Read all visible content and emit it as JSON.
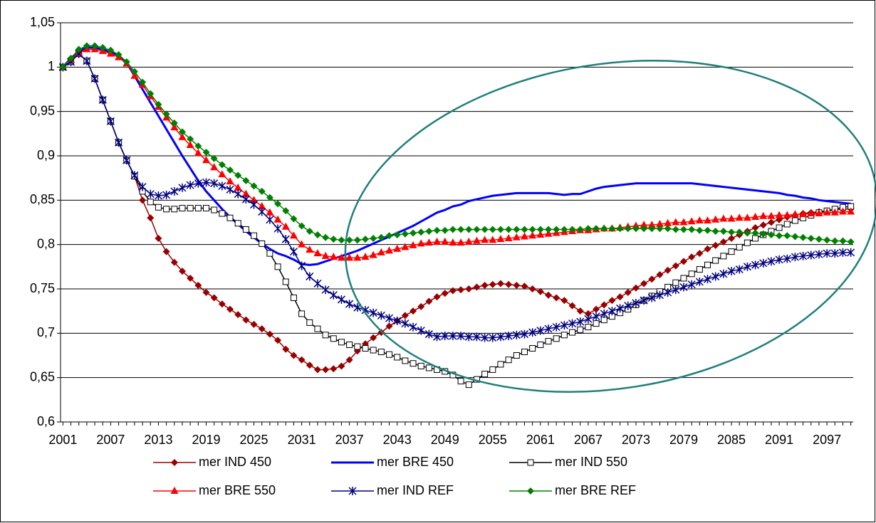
{
  "chart_data": {
    "type": "line",
    "x": [
      2001,
      2002,
      2003,
      2004,
      2005,
      2006,
      2007,
      2008,
      2009,
      2010,
      2011,
      2012,
      2013,
      2014,
      2015,
      2016,
      2017,
      2018,
      2019,
      2020,
      2021,
      2022,
      2023,
      2024,
      2025,
      2026,
      2027,
      2028,
      2029,
      2030,
      2031,
      2032,
      2033,
      2034,
      2035,
      2036,
      2037,
      2038,
      2039,
      2040,
      2041,
      2042,
      2043,
      2044,
      2045,
      2046,
      2047,
      2048,
      2049,
      2050,
      2051,
      2052,
      2053,
      2054,
      2055,
      2056,
      2057,
      2058,
      2059,
      2060,
      2061,
      2062,
      2063,
      2064,
      2065,
      2066,
      2067,
      2068,
      2069,
      2070,
      2071,
      2072,
      2073,
      2074,
      2075,
      2076,
      2077,
      2078,
      2079,
      2080,
      2081,
      2082,
      2083,
      2084,
      2085,
      2086,
      2087,
      2088,
      2089,
      2090,
      2091,
      2092,
      2093,
      2094,
      2095,
      2096,
      2097,
      2098,
      2099,
      2100
    ],
    "xlim": [
      2000.7,
      2100.3
    ],
    "xticks": [
      2001,
      2007,
      2013,
      2019,
      2025,
      2031,
      2037,
      2043,
      2049,
      2055,
      2061,
      2067,
      2073,
      2079,
      2085,
      2091,
      2097
    ],
    "ylim": [
      0.6,
      1.05
    ],
    "yticks": [
      {
        "value": 0.6,
        "label": "0,6"
      },
      {
        "value": 0.65,
        "label": "0,65"
      },
      {
        "value": 0.7,
        "label": "0,7"
      },
      {
        "value": 0.75,
        "label": "0,75"
      },
      {
        "value": 0.8,
        "label": "0,8"
      },
      {
        "value": 0.85,
        "label": "0,85"
      },
      {
        "value": 0.9,
        "label": "0,9"
      },
      {
        "value": 0.95,
        "label": "0,95"
      },
      1,
      {
        "value": 1.05,
        "label": "1,05"
      }
    ],
    "grid": true,
    "legend": "bottom",
    "series": [
      {
        "name": "mer IND 450",
        "color": "#990000",
        "marker": "diamond",
        "values": [
          1.0,
          1.006,
          1.015,
          1.007,
          0.987,
          0.963,
          0.939,
          0.915,
          0.895,
          0.877,
          0.85,
          0.83,
          0.807,
          0.792,
          0.78,
          0.77,
          0.762,
          0.754,
          0.746,
          0.74,
          0.733,
          0.727,
          0.721,
          0.715,
          0.71,
          0.705,
          0.699,
          0.692,
          0.682,
          0.675,
          0.67,
          0.664,
          0.659,
          0.659,
          0.66,
          0.663,
          0.67,
          0.68,
          0.688,
          0.695,
          0.701,
          0.708,
          0.714,
          0.72,
          0.725,
          0.73,
          0.736,
          0.741,
          0.745,
          0.748,
          0.749,
          0.75,
          0.752,
          0.754,
          0.755,
          0.756,
          0.755,
          0.754,
          0.753,
          0.75,
          0.747,
          0.743,
          0.74,
          0.737,
          0.731,
          0.725,
          0.722,
          0.727,
          0.732,
          0.737,
          0.741,
          0.746,
          0.751,
          0.756,
          0.761,
          0.766,
          0.771,
          0.776,
          0.781,
          0.786,
          0.79,
          0.795,
          0.799,
          0.803,
          0.807,
          0.811,
          0.815,
          0.819,
          0.822,
          0.825,
          0.828,
          0.831,
          0.833,
          0.835,
          0.836,
          0.837,
          0.838,
          0.839,
          0.84,
          0.84
        ]
      },
      {
        "name": "mer BRE 450",
        "color": "#0000ff",
        "marker": "none",
        "values": [
          1.0,
          1.01,
          1.018,
          1.022,
          1.022,
          1.02,
          1.017,
          1.013,
          1.005,
          0.99,
          0.975,
          0.96,
          0.945,
          0.93,
          0.915,
          0.9,
          0.886,
          0.872,
          0.86,
          0.85,
          0.84,
          0.831,
          0.823,
          0.815,
          0.808,
          0.801,
          0.795,
          0.79,
          0.787,
          0.783,
          0.778,
          0.777,
          0.778,
          0.781,
          0.784,
          0.787,
          0.79,
          0.793,
          0.797,
          0.801,
          0.805,
          0.809,
          0.813,
          0.817,
          0.821,
          0.826,
          0.831,
          0.836,
          0.839,
          0.843,
          0.845,
          0.849,
          0.851,
          0.853,
          0.855,
          0.856,
          0.857,
          0.858,
          0.858,
          0.858,
          0.858,
          0.858,
          0.857,
          0.856,
          0.857,
          0.857,
          0.86,
          0.863,
          0.865,
          0.866,
          0.867,
          0.868,
          0.869,
          0.869,
          0.869,
          0.869,
          0.869,
          0.869,
          0.869,
          0.869,
          0.868,
          0.867,
          0.866,
          0.865,
          0.864,
          0.863,
          0.862,
          0.861,
          0.86,
          0.859,
          0.858,
          0.856,
          0.855,
          0.853,
          0.852,
          0.85,
          0.849,
          0.848,
          0.847,
          0.846
        ]
      },
      {
        "name": "mer IND 550",
        "color": "#000000",
        "marker": "square",
        "values": [
          1.0,
          1.006,
          1.015,
          1.007,
          0.987,
          0.963,
          0.939,
          0.915,
          0.895,
          0.877,
          0.86,
          0.848,
          0.842,
          0.84,
          0.84,
          0.841,
          0.841,
          0.841,
          0.841,
          0.839,
          0.835,
          0.83,
          0.824,
          0.817,
          0.81,
          0.801,
          0.79,
          0.775,
          0.758,
          0.74,
          0.722,
          0.712,
          0.705,
          0.698,
          0.694,
          0.69,
          0.687,
          0.685,
          0.683,
          0.681,
          0.679,
          0.676,
          0.673,
          0.669,
          0.666,
          0.663,
          0.661,
          0.659,
          0.657,
          0.653,
          0.646,
          0.642,
          0.648,
          0.654,
          0.659,
          0.665,
          0.67,
          0.675,
          0.679,
          0.683,
          0.687,
          0.691,
          0.694,
          0.698,
          0.701,
          0.704,
          0.707,
          0.711,
          0.715,
          0.719,
          0.723,
          0.727,
          0.732,
          0.737,
          0.742,
          0.747,
          0.752,
          0.757,
          0.762,
          0.767,
          0.772,
          0.777,
          0.782,
          0.787,
          0.792,
          0.797,
          0.802,
          0.807,
          0.811,
          0.815,
          0.819,
          0.823,
          0.827,
          0.83,
          0.833,
          0.836,
          0.838,
          0.84,
          0.842,
          0.843
        ]
      },
      {
        "name": "mer BRE 550",
        "color": "#ff0000",
        "marker": "triangle",
        "values": [
          1.0,
          1.008,
          1.016,
          1.02,
          1.02,
          1.018,
          1.015,
          1.011,
          1.004,
          0.99,
          0.98,
          0.967,
          0.955,
          0.943,
          0.932,
          0.921,
          0.912,
          0.903,
          0.895,
          0.887,
          0.879,
          0.871,
          0.864,
          0.857,
          0.85,
          0.843,
          0.836,
          0.828,
          0.82,
          0.81,
          0.8,
          0.794,
          0.79,
          0.787,
          0.786,
          0.785,
          0.785,
          0.785,
          0.786,
          0.788,
          0.791,
          0.793,
          0.795,
          0.797,
          0.799,
          0.801,
          0.802,
          0.803,
          0.803,
          0.802,
          0.802,
          0.803,
          0.804,
          0.805,
          0.805,
          0.806,
          0.807,
          0.808,
          0.809,
          0.81,
          0.811,
          0.812,
          0.813,
          0.814,
          0.815,
          0.816,
          0.816,
          0.817,
          0.818,
          0.818,
          0.819,
          0.82,
          0.821,
          0.822,
          0.822,
          0.823,
          0.824,
          0.825,
          0.825,
          0.826,
          0.827,
          0.827,
          0.828,
          0.829,
          0.829,
          0.83,
          0.83,
          0.831,
          0.832,
          0.832,
          0.833,
          0.833,
          0.834,
          0.834,
          0.835,
          0.835,
          0.836,
          0.836,
          0.837,
          0.837
        ]
      },
      {
        "name": "mer IND REF",
        "color": "#000080",
        "marker": "star",
        "values": [
          1.0,
          1.006,
          1.015,
          1.007,
          0.987,
          0.963,
          0.939,
          0.915,
          0.895,
          0.878,
          0.865,
          0.857,
          0.855,
          0.856,
          0.86,
          0.864,
          0.867,
          0.869,
          0.87,
          0.869,
          0.866,
          0.862,
          0.857,
          0.851,
          0.845,
          0.837,
          0.828,
          0.818,
          0.806,
          0.792,
          0.776,
          0.764,
          0.756,
          0.749,
          0.743,
          0.738,
          0.733,
          0.729,
          0.726,
          0.723,
          0.72,
          0.717,
          0.714,
          0.711,
          0.707,
          0.703,
          0.699,
          0.696,
          0.697,
          0.697,
          0.697,
          0.696,
          0.696,
          0.695,
          0.695,
          0.696,
          0.697,
          0.698,
          0.699,
          0.701,
          0.703,
          0.705,
          0.707,
          0.709,
          0.711,
          0.713,
          0.716,
          0.719,
          0.722,
          0.725,
          0.728,
          0.731,
          0.734,
          0.737,
          0.74,
          0.743,
          0.746,
          0.749,
          0.752,
          0.755,
          0.758,
          0.761,
          0.764,
          0.767,
          0.77,
          0.772,
          0.775,
          0.777,
          0.779,
          0.781,
          0.783,
          0.784,
          0.786,
          0.787,
          0.788,
          0.789,
          0.79,
          0.79,
          0.791,
          0.791
        ]
      },
      {
        "name": "mer BRE REF",
        "color": "#008000",
        "marker": "diamond",
        "values": [
          1.0,
          1.01,
          1.02,
          1.024,
          1.024,
          1.022,
          1.019,
          1.014,
          1.006,
          0.995,
          0.983,
          0.97,
          0.958,
          0.947,
          0.937,
          0.927,
          0.919,
          0.911,
          0.904,
          0.897,
          0.89,
          0.884,
          0.878,
          0.872,
          0.866,
          0.86,
          0.853,
          0.846,
          0.838,
          0.829,
          0.821,
          0.815,
          0.811,
          0.808,
          0.806,
          0.805,
          0.805,
          0.805,
          0.806,
          0.807,
          0.808,
          0.81,
          0.811,
          0.812,
          0.813,
          0.814,
          0.815,
          0.816,
          0.816,
          0.817,
          0.817,
          0.817,
          0.817,
          0.817,
          0.817,
          0.817,
          0.817,
          0.817,
          0.817,
          0.817,
          0.817,
          0.817,
          0.817,
          0.817,
          0.817,
          0.817,
          0.818,
          0.818,
          0.818,
          0.818,
          0.818,
          0.818,
          0.818,
          0.818,
          0.818,
          0.818,
          0.818,
          0.817,
          0.817,
          0.817,
          0.816,
          0.816,
          0.815,
          0.815,
          0.814,
          0.814,
          0.813,
          0.813,
          0.812,
          0.811,
          0.81,
          0.81,
          0.809,
          0.808,
          0.807,
          0.806,
          0.805,
          0.804,
          0.804,
          0.803
        ]
      }
    ]
  }
}
